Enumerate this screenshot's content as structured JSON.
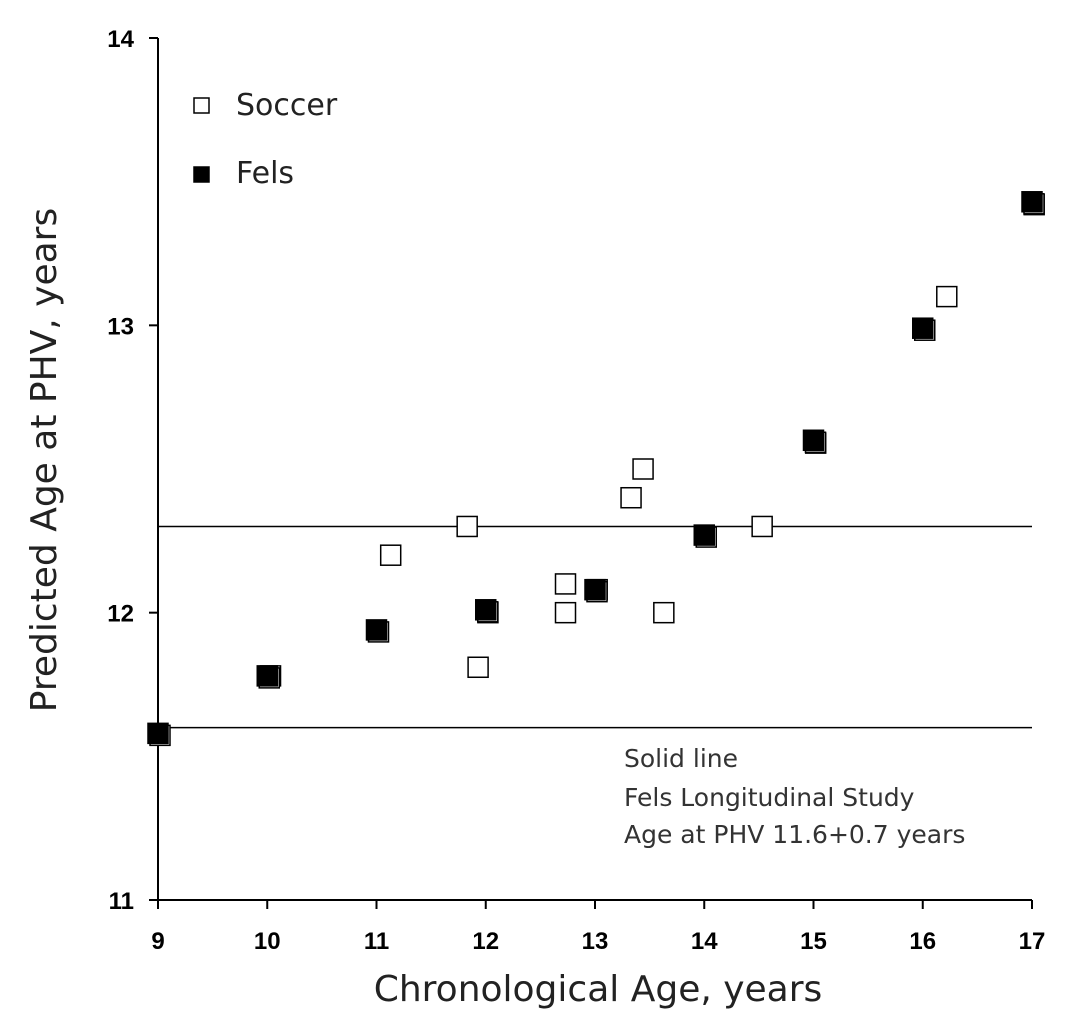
{
  "chart_data": {
    "type": "scatter",
    "title": "",
    "xlabel": "Chronological Age, years",
    "ylabel": "Predicted Age at PHV, years",
    "xlim": [
      9,
      17
    ],
    "ylim": [
      11,
      14
    ],
    "xticks": [
      "9",
      "10",
      "11",
      "12",
      "13",
      "14",
      "15",
      "16",
      "17"
    ],
    "yticks": [
      "11",
      "12",
      "13",
      "14"
    ],
    "grid": false,
    "legend_position": "top-left",
    "series": [
      {
        "name": "Soccer",
        "marker": "open-square",
        "color": "#000000",
        "points": [
          {
            "x": 10.03,
            "y": 11.78
          },
          {
            "x": 11.13,
            "y": 12.2
          },
          {
            "x": 11.83,
            "y": 12.3
          },
          {
            "x": 11.93,
            "y": 11.81
          },
          {
            "x": 12.02,
            "y": 12.0
          },
          {
            "x": 12.73,
            "y": 12.1
          },
          {
            "x": 12.73,
            "y": 12.0
          },
          {
            "x": 13.02,
            "y": 12.08
          },
          {
            "x": 13.33,
            "y": 12.4
          },
          {
            "x": 13.44,
            "y": 12.5
          },
          {
            "x": 13.63,
            "y": 12.0
          },
          {
            "x": 14.53,
            "y": 12.3
          },
          {
            "x": 15.02,
            "y": 12.59
          },
          {
            "x": 16.22,
            "y": 13.1
          },
          {
            "x": 17.02,
            "y": 13.42
          }
        ]
      },
      {
        "name": "Fels",
        "marker": "filled-square",
        "color": "#000000",
        "points": [
          {
            "x": 9.0,
            "y": 11.58
          },
          {
            "x": 10.0,
            "y": 11.78
          },
          {
            "x": 11.0,
            "y": 11.94
          },
          {
            "x": 12.0,
            "y": 12.01
          },
          {
            "x": 13.0,
            "y": 12.08
          },
          {
            "x": 14.0,
            "y": 12.27
          },
          {
            "x": 15.0,
            "y": 12.6
          },
          {
            "x": 16.0,
            "y": 12.99
          },
          {
            "x": 17.0,
            "y": 13.43
          }
        ]
      }
    ],
    "reference_lines": [
      {
        "y": 12.3,
        "name": "upper-reference"
      },
      {
        "y": 11.6,
        "name": "lower-reference"
      }
    ],
    "annotation": [
      "Solid line",
      "Fels Longitudinal Study",
      "Age at PHV 11.6+0.7 years"
    ]
  }
}
